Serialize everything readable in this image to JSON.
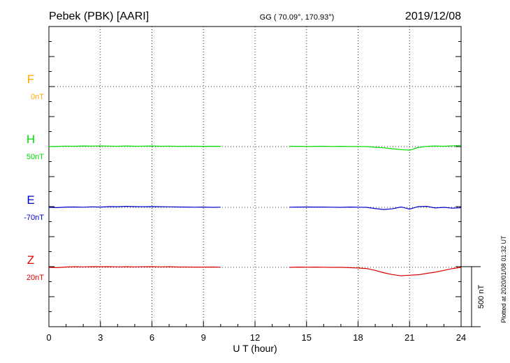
{
  "header": {
    "station": "Pebek (PBK)  [AARI]",
    "coords": "GG ( 70.09°, 170.93°)",
    "date": "2019/12/08"
  },
  "footer": {
    "plotted": "Plotted at 2020/01/08 01:32 UT"
  },
  "colors": {
    "F": "#ffa500",
    "H": "#00dd00",
    "E": "#0000cc",
    "Z": "#dd0000",
    "axis": "#000000"
  },
  "chart_data": {
    "type": "line",
    "xlabel": "U T (hour)",
    "xlim": [
      0,
      24
    ],
    "xticks": [
      "0",
      "3",
      "6",
      "9",
      "12",
      "15",
      "18",
      "21",
      "24"
    ],
    "scale_bar": {
      "label": "500 nT",
      "value_nT": 500
    },
    "series": [
      {
        "name": "F",
        "baseline": "0nT",
        "offset_nT": 0,
        "x": [],
        "y": []
      },
      {
        "name": "H",
        "baseline": "50nT",
        "offset_nT": 50,
        "x": [
          0,
          0.5,
          1,
          1.5,
          2,
          2.5,
          3,
          3.5,
          4,
          4.5,
          5,
          5.5,
          6,
          6.5,
          7,
          7.5,
          8,
          8.5,
          9,
          9.5,
          10,
          null,
          14,
          14.5,
          15,
          15.5,
          16,
          16.5,
          17,
          17.5,
          18,
          18.5,
          19,
          19.5,
          20,
          20.5,
          21,
          21.5,
          22,
          22.5,
          23,
          23.5,
          24
        ],
        "y": [
          0,
          2,
          4,
          3,
          5,
          4,
          6,
          4,
          3,
          5,
          3,
          4,
          5,
          3,
          4,
          2,
          3,
          3,
          2,
          3,
          2,
          null,
          3,
          2,
          1,
          2,
          3,
          1,
          2,
          1,
          1,
          0,
          -5,
          -10,
          -18,
          -25,
          -30,
          -8,
          2,
          5,
          3,
          6,
          10
        ]
      },
      {
        "name": "E",
        "baseline": "-70nT",
        "offset_nT": -70,
        "x": [
          0,
          0.5,
          1,
          1.5,
          2,
          2.5,
          3,
          3.5,
          4,
          4.5,
          5,
          5.5,
          6,
          6.5,
          7,
          7.5,
          8,
          8.5,
          9,
          9.5,
          10,
          null,
          14,
          14.5,
          15,
          15.5,
          16,
          16.5,
          17,
          17.5,
          18,
          18.5,
          19,
          19.5,
          20,
          20.5,
          21,
          21.5,
          22,
          22.5,
          23,
          23.5,
          24
        ],
        "y": [
          0,
          -2,
          2,
          3,
          1,
          4,
          2,
          6,
          5,
          8,
          6,
          5,
          6,
          5,
          4,
          3,
          2,
          1,
          2,
          0,
          1,
          null,
          1,
          2,
          3,
          2,
          2,
          1,
          0,
          2,
          1,
          0,
          -10,
          -18,
          -12,
          3,
          -15,
          6,
          8,
          -5,
          0,
          -7,
          -3
        ]
      },
      {
        "name": "Z",
        "baseline": "20nT",
        "offset_nT": 20,
        "x": [
          0,
          0.5,
          1,
          1.5,
          2,
          2.5,
          3,
          3.5,
          4,
          4.5,
          5,
          5.5,
          6,
          6.5,
          7,
          7.5,
          8,
          8.5,
          9,
          9.5,
          10,
          null,
          14,
          14.5,
          15,
          15.5,
          16,
          16.5,
          17,
          17.5,
          18,
          18.5,
          19,
          19.5,
          20,
          20.5,
          21,
          21.5,
          22,
          22.5,
          23,
          23.5,
          24
        ],
        "y": [
          0,
          -2,
          3,
          5,
          4,
          6,
          5,
          6,
          4,
          5,
          4,
          5,
          6,
          4,
          5,
          3,
          3,
          2,
          2,
          3,
          1,
          null,
          0,
          2,
          1,
          2,
          1,
          0,
          0,
          -2,
          -5,
          -10,
          -25,
          -45,
          -60,
          -70,
          -65,
          -62,
          -50,
          -40,
          -25,
          -10,
          0
        ]
      }
    ]
  }
}
